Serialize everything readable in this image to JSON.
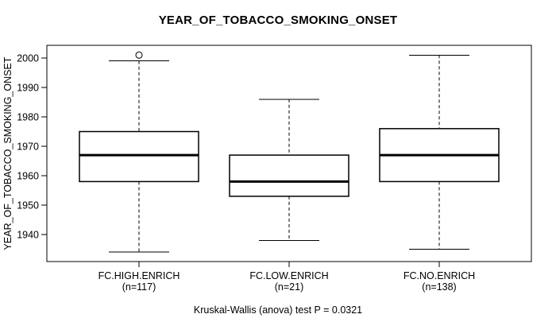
{
  "chart_data": {
    "type": "boxplot",
    "title": "YEAR_OF_TOBACCO_SMOKING_ONSET",
    "ylabel": "YEAR_OF_TOBACCO_SMOKING_ONSET",
    "caption": "Kruskal-Wallis (anova) test P = 0.0321",
    "p_value": 0.0321,
    "yticks": [
      1940,
      1950,
      1960,
      1970,
      1980,
      1990,
      2000
    ],
    "ylim": [
      1931,
      2004
    ],
    "grid": false,
    "line_color": "#000000",
    "background_color": "#ffffff",
    "groups": [
      {
        "label": "FC.HIGH.ENRICH",
        "n_label": "(n=117)",
        "n": 117,
        "whisker_low": 1934,
        "q1": 1958,
        "median": 1967,
        "q3": 1975,
        "whisker_high": 1999,
        "outliers": [
          2001
        ]
      },
      {
        "label": "FC.LOW.ENRICH",
        "n_label": "(n=21)",
        "n": 21,
        "whisker_low": 1938,
        "q1": 1953,
        "median": 1958,
        "q3": 1967,
        "whisker_high": 1986,
        "outliers": []
      },
      {
        "label": "FC.NO.ENRICH",
        "n_label": "(n=138)",
        "n": 138,
        "whisker_low": 1935,
        "q1": 1958,
        "median": 1967,
        "q3": 1976,
        "whisker_high": 2001,
        "outliers": []
      }
    ]
  }
}
